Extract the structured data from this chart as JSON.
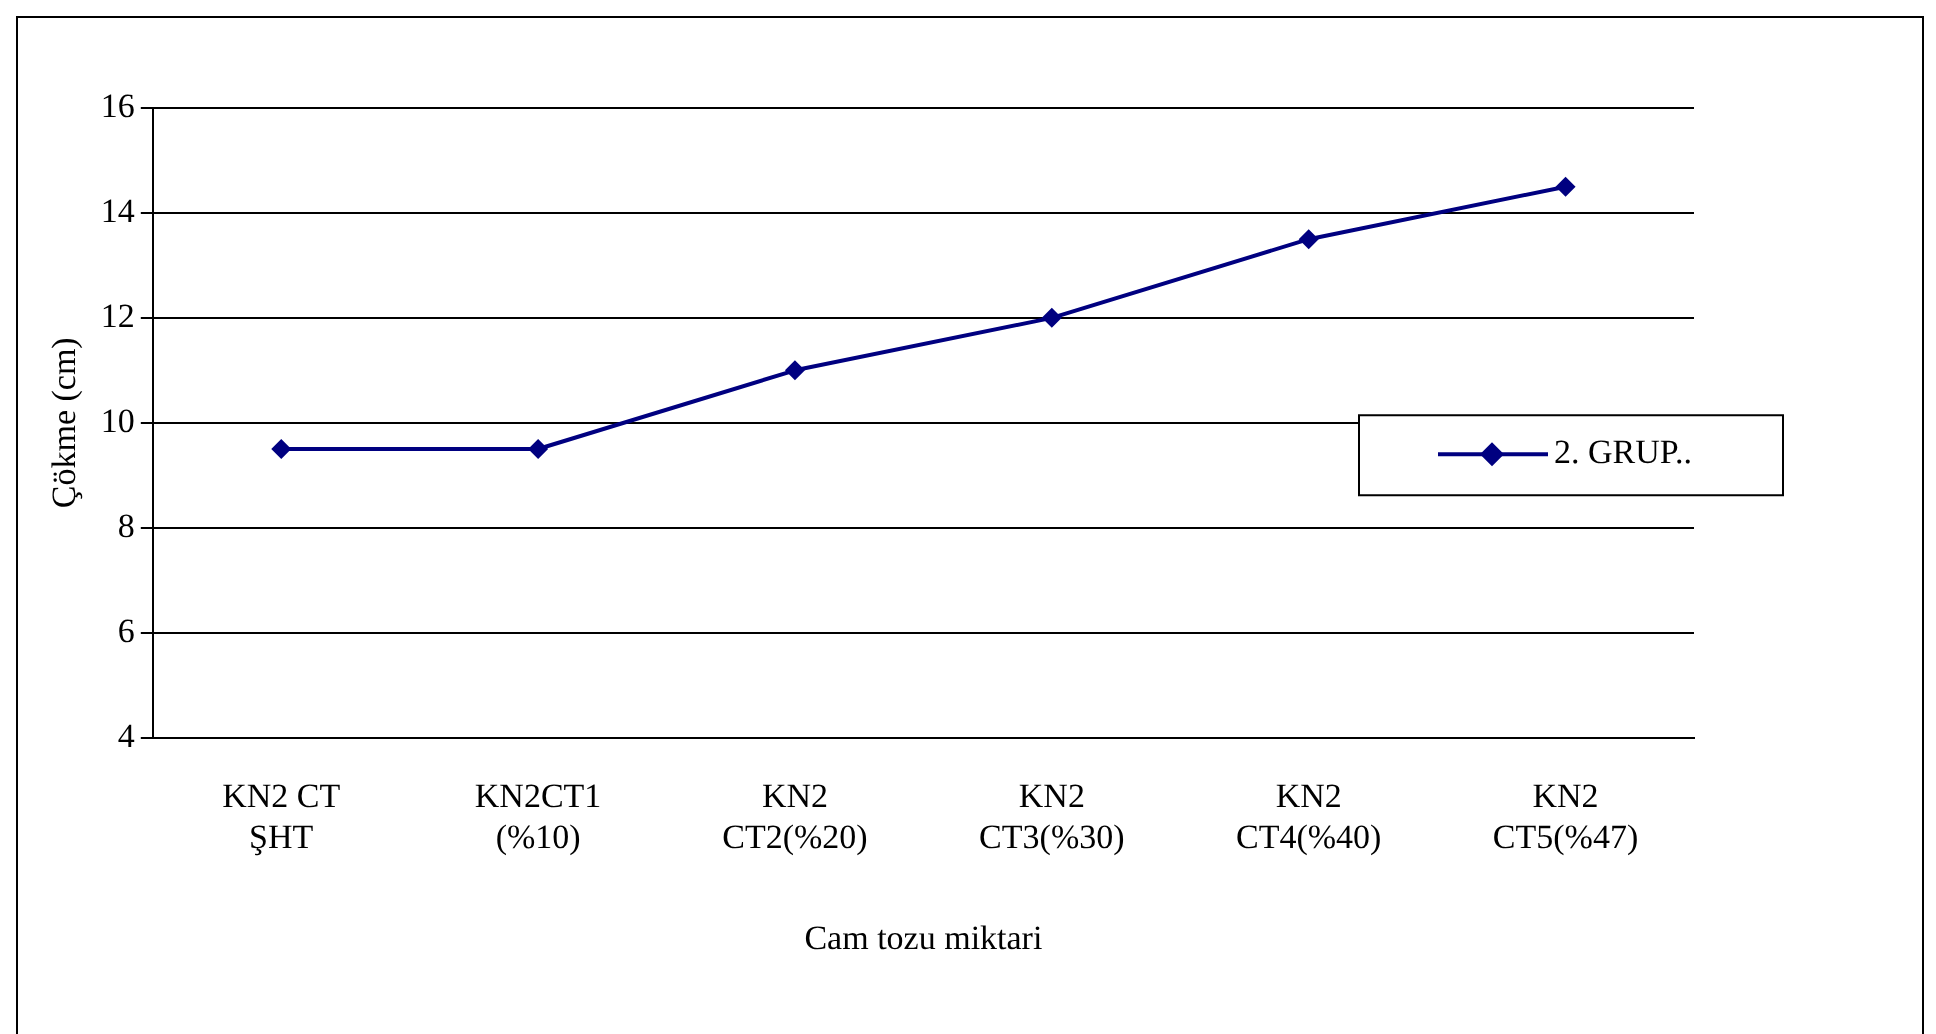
{
  "chart_data": {
    "type": "line",
    "xlabel": "Cam tozu miktari",
    "ylabel": "Çökme (cm)",
    "categories": [
      "KN2 CT ŞHT",
      "KN2CT1 (%10)",
      "KN2 CT2(%20)",
      "KN2 CT3(%30)",
      "KN2 CT4(%40)",
      "KN2 CT5(%47)"
    ],
    "series": [
      {
        "name": "2. GRUP..",
        "color": "#000080",
        "values": [
          9.5,
          9.5,
          11,
          12,
          13.5,
          14.5
        ]
      }
    ],
    "ylim": [
      4,
      16
    ],
    "yticks": [
      4,
      6,
      8,
      10,
      12,
      14,
      16
    ],
    "grid": "y",
    "legend": "right",
    "marker": "diamond",
    "line_style": "solid"
  }
}
